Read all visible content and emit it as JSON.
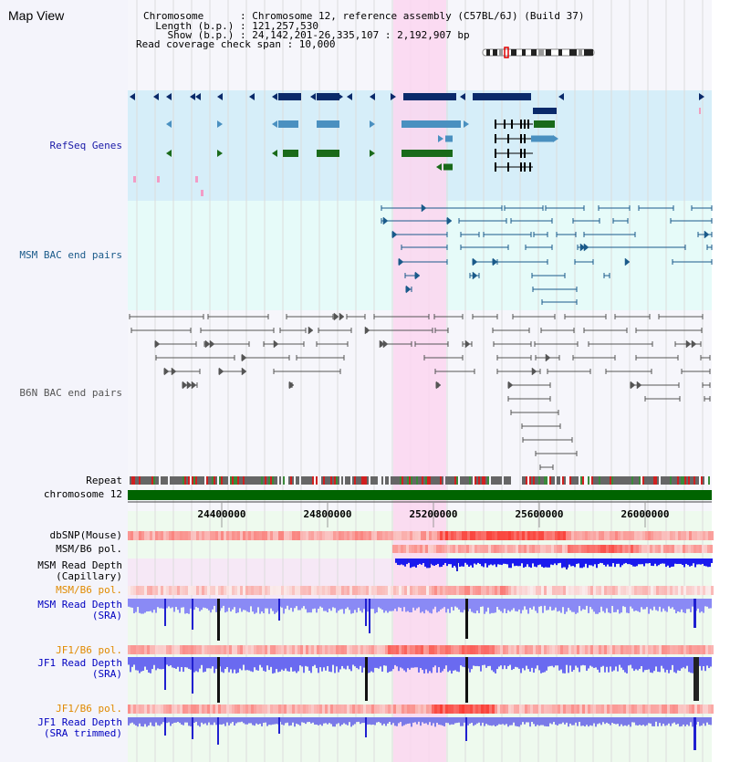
{
  "header": {
    "title": "Map View",
    "info_lines": [
      "Chromosome      : Chromosome 12, reference assembly (C57BL/6J) (Build 37)",
      "  Length (b.p.) : 121,257,530",
      "    Show (b.p.) : 24,142,201-26,335,107 : 2,192,907 bp",
      "Read coverage check span : 10,000"
    ]
  },
  "tracks": {
    "refseq": "RefSeq Genes",
    "msm_bac": "MSM BAC end pairs",
    "b6n_bac": "B6N BAC end pairs",
    "repeat": "Repeat",
    "chromosome": "chromosome 12",
    "dbsnp": "dbSNP(Mouse)",
    "msm_b6_pol_1": "MSM/B6 pol.",
    "msm_depth_cap": "MSM Read Depth\n(Capillary)",
    "msm_b6_pol_2": "MSM/B6 pol.",
    "msm_depth_sra": "MSM Read Depth\n(SRA)",
    "jf1_b6_pol_1": "JF1/B6 pol.",
    "jf1_depth_sra": "JF1 Read Depth\n(SRA)",
    "jf1_b6_pol_2": "JF1/B6 pol.",
    "jf1_depth_trim": "JF1 Read Depth\n(SRA trimmed)"
  },
  "axis_ticks": [
    "24400000",
    "24800000",
    "25200000",
    "25600000",
    "26000000"
  ],
  "colors": {
    "refseq_label": "#1a1aa8",
    "msm_bac_label": "#1a5a8a",
    "b6n_bac_label": "#555555",
    "orange_label": "#e08a00",
    "blue_label": "#0000c0",
    "gene_dark": "#0a2a6a",
    "gene_mid": "#4a90c0",
    "gene_green": "#1a6a1a",
    "chromosome_bar": "#006400",
    "highlight": "#fbd6f0"
  }
}
